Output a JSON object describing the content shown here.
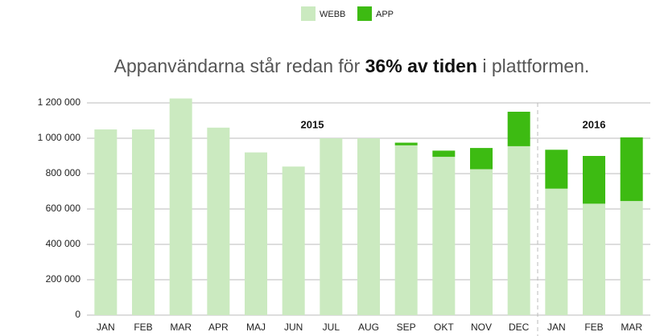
{
  "chart_data": {
    "type": "stacked_bar",
    "title_parts": [
      "Appanvändarna står redan för ",
      "36% av tiden",
      " i plattformen."
    ],
    "categories": [
      "JAN",
      "FEB",
      "MAR",
      "APR",
      "MAJ",
      "JUN",
      "JUL",
      "AUG",
      "SEP",
      "OKT",
      "NOV",
      "DEC",
      "JAN",
      "FEB",
      "MAR"
    ],
    "series": [
      {
        "name": "WEBB",
        "color": "#cbeac0",
        "values": [
          1050000,
          1050000,
          1225000,
          1060000,
          920000,
          840000,
          1000000,
          1000000,
          960000,
          895000,
          825000,
          955000,
          715000,
          630000,
          645000
        ]
      },
      {
        "name": "APP",
        "color": "#3dbb12",
        "values": [
          0,
          0,
          0,
          0,
          0,
          0,
          0,
          0,
          15000,
          35000,
          120000,
          195000,
          220000,
          270000,
          360000
        ]
      }
    ],
    "ylim": [
      0,
      1200000
    ],
    "yticks": [
      0,
      {
        "value": 200000,
        "label": "200 000"
      },
      {
        "value": 400000,
        "label": "400 000"
      },
      {
        "value": 600000,
        "label": "600 000"
      },
      {
        "value": 800000,
        "label": "800 000"
      },
      {
        "value": 1000000,
        "label": "1 000 000"
      },
      {
        "value": 1200000,
        "label": "1 200 000"
      }
    ],
    "annotations": [
      "2015",
      "2016"
    ],
    "grid": true,
    "legend": "top"
  }
}
